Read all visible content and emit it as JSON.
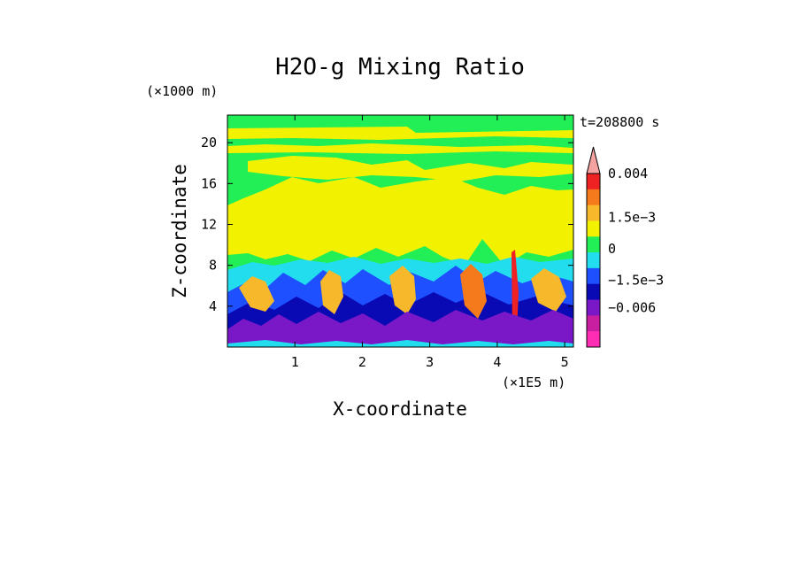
{
  "chart_data": {
    "type": "heatmap",
    "title": "H2O-g Mixing Ratio",
    "xlabel": "X-coordinate",
    "ylabel": "Z-coordinate",
    "x_unit": "(×1E5 m)",
    "y_unit": "(×1000 m)",
    "time_label": "t=208800 s",
    "xlim": [
      0,
      5.13
    ],
    "ylim": [
      0,
      22.7
    ],
    "x_ticks": [
      "1",
      "2",
      "3",
      "4",
      "5"
    ],
    "x_tick_values": [
      1,
      2,
      3,
      4,
      5
    ],
    "y_ticks": [
      "4",
      "8",
      "12",
      "16",
      "20"
    ],
    "y_tick_values": [
      4,
      8,
      12,
      16,
      20
    ],
    "colorbar": {
      "labels": [
        "0.004",
        "1.5e−3",
        "0",
        "−1.5e−3",
        "−0.006"
      ],
      "levels": [
        {
          "color": "#f4a3a0"
        },
        {
          "color": "#ee2222"
        },
        {
          "color": "#f57a1c"
        },
        {
          "color": "#f7b82b"
        },
        {
          "color": "#f2f200"
        },
        {
          "color": "#22ee55"
        },
        {
          "color": "#22ddee"
        },
        {
          "color": "#1e50ff"
        },
        {
          "color": "#0a0ab4"
        },
        {
          "color": "#7a18c8"
        },
        {
          "color": "#c81ea0"
        },
        {
          "color": "#ff2db4"
        }
      ]
    },
    "regions": [
      {
        "name": "upper-band",
        "z_range": [
          14,
          22.7
        ],
        "dominant": "green-yellow"
      },
      {
        "name": "middle-band",
        "z_range": [
          8,
          14
        ],
        "dominant": "yellow"
      },
      {
        "name": "lower-band",
        "z_range": [
          0,
          8
        ],
        "dominant": "mixed"
      }
    ]
  }
}
